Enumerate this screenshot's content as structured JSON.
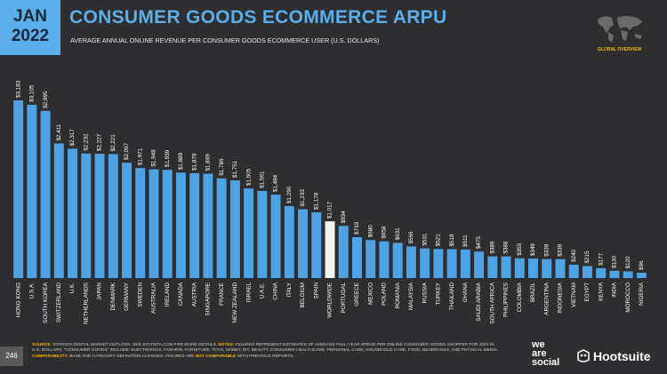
{
  "date_box": {
    "month": "JAN",
    "year": "2022"
  },
  "map_label": "GLOBAL OVERVIEW",
  "page_number": "246",
  "footnote": [
    "SOURCE:",
    " STATISTA DIGITAL MARKET OUTLOOK. SEE STATISTA.COM FOR MORE DETAILS. ",
    "NOTES:",
    " FIGURES REPRESENT ESTIMATES OF AVERAGE FULL-YEAR SPEND PER ONLINE CONSUMER GOODS SHOPPER FOR 2021 IN U.S. DOLLARS. \"CONSUMER GOODS\" INCLUDE: ELECTRONICS, FASHION, FURNITURE, TOYS, HOBBY, DIY, BEAUTY, CONSUMER HEALTHCARE, PERSONAL CARE, HOUSEHOLD CARE, FOOD, BEVERAGES, AND PHYSICAL MEDIA. ",
    "COMPARABILITY:",
    " BASE AND CATEGORY DEFINITION CHANGES. FIGURES ARE ",
    "NOT COMPARABLE",
    " WITH PREVIOUS REPORTS."
  ],
  "logos": {
    "we_are_social": [
      "we",
      "are",
      "social"
    ],
    "hootsuite": "Hootsuite"
  },
  "chart_data": {
    "type": "bar",
    "title": "CONSUMER GOODS ECOMMERCE ARPU",
    "subtitle": "AVERAGE ANNUAL ONLINE REVENUE PER CONSUMER GOODS ECOMMERCE USER (U.S. DOLLARS)",
    "categories": [
      "HONG KONG",
      "U.S.A.",
      "SOUTH KOREA",
      "SWITZERLAND",
      "U.K.",
      "NETHERLANDS",
      "JAPAN",
      "DENMARK",
      "GERMANY",
      "SWEDEN",
      "AUSTRALIA",
      "IRELAND",
      "CANADA",
      "AUSTRIA",
      "SINGAPORE",
      "FRANCE",
      "NEW ZEALAND",
      "ISRAEL",
      "U.A.E.",
      "CHINA",
      "ITALY",
      "BELGIUM",
      "SPAIN",
      "WORLDWIDE",
      "PORTUGAL",
      "GREECE",
      "MEXICO",
      "POLAND",
      "ROMANIA",
      "MALAYSIA",
      "RUSSIA",
      "TURKEY",
      "THAILAND",
      "GHANA",
      "SAUDI ARABIA",
      "SOUTH AFRICA",
      "PHILIPPINES",
      "COLOMBIA",
      "BRAZIL",
      "ARGENTINA",
      "INDONESIA",
      "VIETNAM",
      "EGYPT",
      "KENYA",
      "INDIA",
      "MOROCCO",
      "NIGERIA"
    ],
    "values": [
      3183,
      3105,
      2995,
      2411,
      2317,
      2232,
      2227,
      2221,
      2067,
      1971,
      1948,
      1939,
      1889,
      1879,
      1869,
      1786,
      1751,
      1605,
      1561,
      1494,
      1290,
      1233,
      1178,
      1017,
      934,
      733,
      680,
      658,
      631,
      566,
      531,
      521,
      518,
      511,
      475,
      389,
      388,
      355,
      349,
      339,
      339,
      240,
      215,
      177,
      130,
      120,
      96
    ],
    "value_labels": [
      "$3,183",
      "$3,105",
      "$2,995",
      "$2,411",
      "$2,317",
      "$2,232",
      "$2,227",
      "$2,221",
      "$2,067",
      "$1,971",
      "$1,948",
      "$1,939",
      "$1,889",
      "$1,879",
      "$1,869",
      "$1,786",
      "$1,751",
      "$1,605",
      "$1,561",
      "$1,494",
      "$1,290",
      "$1,233",
      "$1,178",
      "$1,017",
      "$934",
      "$733",
      "$680",
      "$658",
      "$631",
      "$566",
      "$531",
      "$521",
      "$518",
      "$511",
      "$475",
      "$389",
      "$388",
      "$355",
      "$349",
      "$339",
      "$339",
      "$240",
      "$215",
      "$177",
      "$130",
      "$120",
      "$96"
    ],
    "colors": [
      "#4ea3e4",
      "#4ea3e4",
      "#4ea3e4",
      "#4ea3e4",
      "#4ea3e4",
      "#4ea3e4",
      "#4ea3e4",
      "#4ea3e4",
      "#4ea3e4",
      "#4ea3e4",
      "#4ea3e4",
      "#4ea3e4",
      "#4ea3e4",
      "#4ea3e4",
      "#4ea3e4",
      "#4ea3e4",
      "#4ea3e4",
      "#4ea3e4",
      "#4ea3e4",
      "#4ea3e4",
      "#4ea3e4",
      "#4ea3e4",
      "#4ea3e4",
      "#f2f2f2",
      "#4ea3e4",
      "#4ea3e4",
      "#4ea3e4",
      "#4ea3e4",
      "#4ea3e4",
      "#4ea3e4",
      "#4ea3e4",
      "#4ea3e4",
      "#4ea3e4",
      "#4ea3e4",
      "#4ea3e4",
      "#4ea3e4",
      "#4ea3e4",
      "#4ea3e4",
      "#4ea3e4",
      "#4ea3e4",
      "#4ea3e4",
      "#4ea3e4",
      "#4ea3e4",
      "#4ea3e4",
      "#4ea3e4",
      "#4ea3e4",
      "#4ea3e4"
    ]
  }
}
